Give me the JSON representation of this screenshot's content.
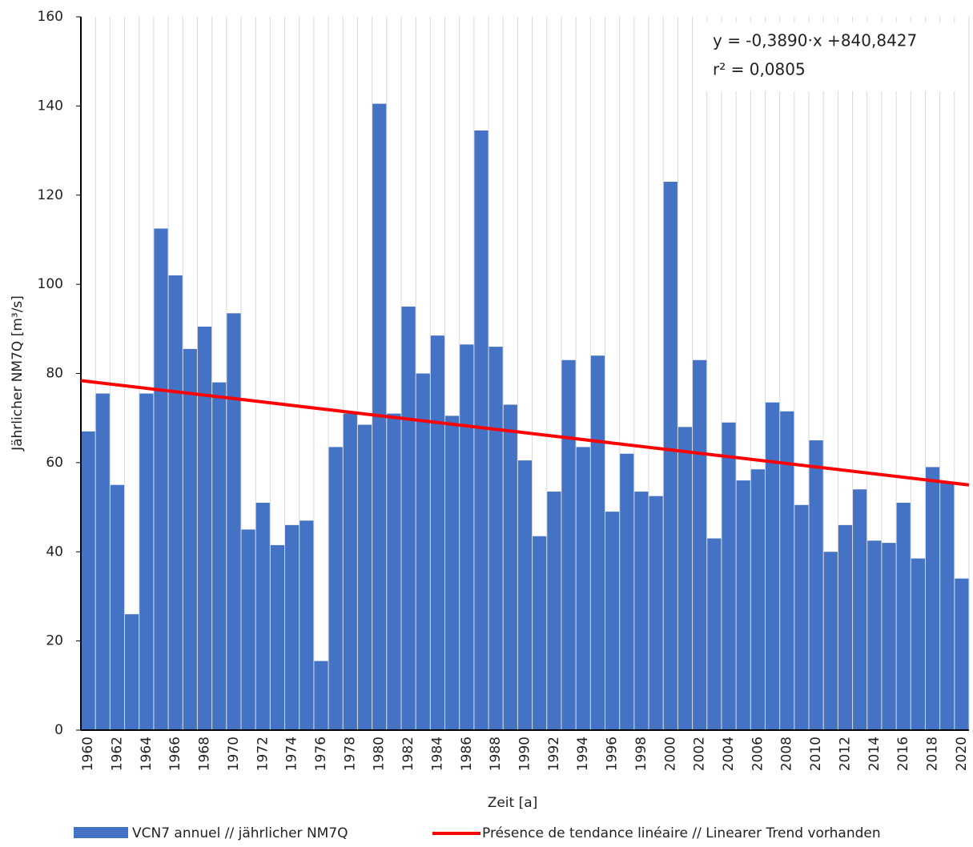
{
  "chart_data": {
    "type": "bar",
    "x_label": "Zeit [a]",
    "y_label": "Jährlicher NM7Q [m³/s]",
    "annotations": [
      "y = -0,3890·x +840,8427",
      "r² = 0,0805"
    ],
    "categories": [
      "1960",
      null,
      "1962",
      null,
      "1964",
      null,
      "1966",
      null,
      "1968",
      null,
      "1970",
      null,
      "1972",
      null,
      "1974",
      null,
      "1976",
      null,
      "1978",
      null,
      "1980",
      null,
      "1982",
      null,
      "1984",
      null,
      "1986",
      null,
      "1988",
      null,
      "1990",
      null,
      "1992",
      null,
      "1994",
      null,
      "1996",
      null,
      "1998",
      null,
      "2000",
      null,
      "2002",
      null,
      "2004",
      null,
      "2006",
      null,
      "2008",
      null,
      "2010",
      null,
      "2012",
      null,
      "2014",
      null,
      "2016",
      null,
      "2018",
      null,
      "2020"
    ],
    "series": [
      {
        "name": "VCN7 annuel // jährlicher NM7Q",
        "color": "#4472c4",
        "values": [
          67,
          75.5,
          55,
          26,
          75.5,
          112.5,
          102,
          85.5,
          90.5,
          78,
          93.5,
          45,
          51,
          41.5,
          46,
          47,
          15.5,
          63.5,
          71,
          68.5,
          140.5,
          71,
          95,
          80,
          88.5,
          70.5,
          86.5,
          134.5,
          86,
          73,
          60.5,
          43.5,
          53.5,
          83,
          63.5,
          84,
          49,
          62,
          53.5,
          52.5,
          123,
          68,
          83,
          43,
          69,
          56,
          58.5,
          73.5,
          71.5,
          50.5,
          65,
          40,
          46,
          54,
          42.5,
          42,
          51,
          38.5,
          59,
          55.5,
          34
        ]
      },
      {
        "name": "Présence de tendance linéaire // Linearer Trend vorhanden",
        "color": "#ff0000",
        "type": "line",
        "x": [
          1960,
          2020
        ],
        "values": [
          78.4,
          55.0
        ]
      }
    ],
    "ylim": [
      0,
      160
    ],
    "yticks": [
      0,
      20,
      40,
      60,
      80,
      100,
      120,
      140,
      160
    ]
  }
}
